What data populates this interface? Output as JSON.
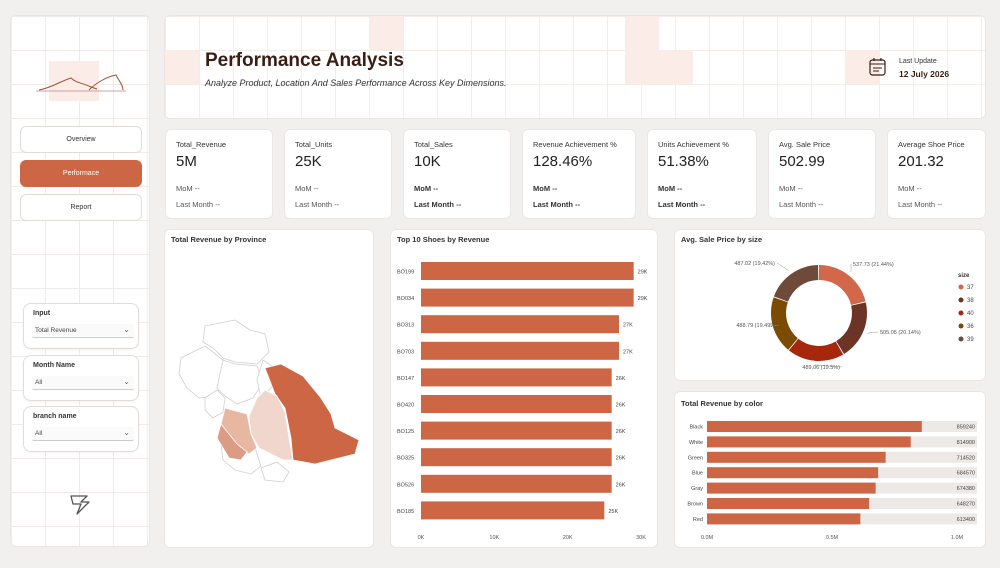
{
  "sidebar": {
    "nav": [
      {
        "label": "Overview",
        "active": false
      },
      {
        "label": "Performace",
        "active": true
      },
      {
        "label": "Report",
        "active": false
      }
    ],
    "slicers": [
      {
        "title": "Input",
        "value": "Total Revenue"
      },
      {
        "title": "Month Name",
        "value": "All"
      },
      {
        "title": "branch name",
        "value": "All"
      }
    ]
  },
  "header": {
    "title": "Performance Analysis",
    "subtitle": "Analyze Product, Location And Sales Performance Across Key Dimensions.",
    "update_label": "Last Update",
    "update_date": "12 July 2026"
  },
  "kpis": [
    {
      "title": "Total_Revenue",
      "value": "5M",
      "mom": "MoM --",
      "last": "Last Month --"
    },
    {
      "title": "Total_Units",
      "value": "25K",
      "mom": "MoM --",
      "last": "Last Month --"
    },
    {
      "title": "Total_Sales",
      "value": "10K",
      "mom": "MoM --",
      "last": "Last Month --"
    },
    {
      "title": "Revenue Achievement %",
      "value": "128.46%",
      "mom": "MoM --",
      "last": "Last Month --"
    },
    {
      "title": "Units Achievement %",
      "value": "51.38%",
      "mom": "MoM --",
      "last": "Last Month --"
    },
    {
      "title": "Avg. Sale Price",
      "value": "502.99",
      "mom": "MoM --",
      "last": "Last Month --"
    },
    {
      "title": "Average Shoe Price",
      "value": "201.32",
      "mom": "MoM --",
      "last": "Last Month --"
    }
  ],
  "colors": {
    "accent": "#cc6644",
    "donut": [
      "#d2674a",
      "#6b3424",
      "#a7270d",
      "#7a4b00",
      "#6e4a3a"
    ],
    "map_main": "#cc6644",
    "map_light": "#f0d6cc",
    "map_mid": "#dc9c84"
  },
  "chart_data": [
    {
      "type": "map",
      "title": "Total Revenue by Province"
    },
    {
      "type": "bar",
      "title": "Top 10 Shoes by Revenue",
      "categories": [
        "BO199",
        "BO034",
        "BO313",
        "BO703",
        "BO147",
        "BO420",
        "BO125",
        "BO325",
        "BO526",
        "BO185"
      ],
      "values": [
        29,
        29,
        27,
        27,
        26,
        26,
        26,
        26,
        26,
        25
      ],
      "value_labels": [
        "29K",
        "29K",
        "27K",
        "27K",
        "26K",
        "26K",
        "26K",
        "26K",
        "26K",
        "25K"
      ],
      "xticks": [
        "0K",
        "10K",
        "20K",
        "30K"
      ],
      "xlim": [
        0,
        30
      ]
    },
    {
      "type": "pie",
      "title": "Avg. Sale Price by size",
      "legend_title": "size",
      "labels": [
        "37",
        "38",
        "40",
        "36",
        "39"
      ],
      "values": [
        537.73,
        505.05,
        489.06,
        488.79,
        487.02
      ],
      "slice_labels": [
        "537.73 (21.44%)",
        "505.05 (20.14%)",
        "489.06 (19.5%)",
        "488.79 (19.49%)",
        "487.02 (19.42%)"
      ],
      "legend_position": "right"
    },
    {
      "type": "bar",
      "title": "Total Revenue by color",
      "categories": [
        "Black",
        "White",
        "Green",
        "Blue",
        "Gray",
        "Brown",
        "Red"
      ],
      "values": [
        859240,
        814900,
        714520,
        684570,
        674380,
        648270,
        613400
      ],
      "value_labels": [
        "859240",
        "814900",
        "714520",
        "684570",
        "674380",
        "648270",
        "613400"
      ],
      "xticks": [
        "0.0M",
        "0.5M",
        "1.0M"
      ],
      "xlim": [
        0,
        1000000
      ]
    }
  ]
}
